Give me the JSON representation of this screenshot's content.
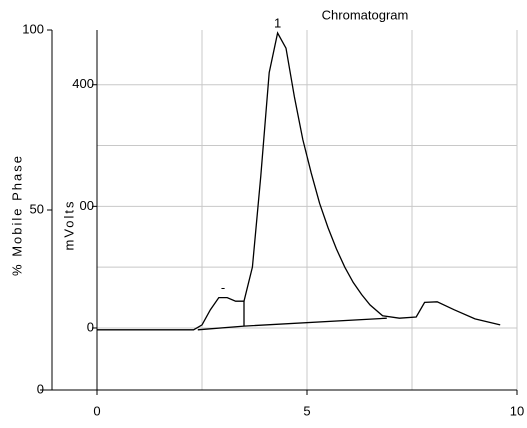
{
  "chart_data": {
    "type": "line",
    "title": "Chromatogram",
    "xlabel": null,
    "ylabel": "mVolts",
    "y2label": "% Mobile Phase",
    "xlim": [
      0,
      10
    ],
    "xticks": [
      0,
      5,
      10
    ],
    "xgrid": [
      2.5,
      5,
      7.5,
      10
    ],
    "ylim": [
      -102,
      490
    ],
    "yticks": [
      0,
      {
        "value": 200,
        "label": "00"
      },
      400
    ],
    "ygrid": [
      0,
      100,
      200,
      300,
      400
    ],
    "y2lim": [
      0,
      100
    ],
    "y2ticks": [
      0,
      50,
      100
    ],
    "grid": true,
    "series": [
      {
        "color": "#000000",
        "x": [
          0,
          2.3,
          2.5,
          2.7,
          2.9,
          3.1,
          3.3,
          3.5,
          3.7,
          3.9,
          4.1,
          4.3,
          4.5,
          4.7,
          4.9,
          5.1,
          5.3,
          5.5,
          5.7,
          5.9,
          6.1,
          6.3,
          6.5,
          6.8,
          7.2,
          7.6,
          7.8,
          8.1,
          8.5,
          9,
          9.6
        ],
        "values": [
          -3,
          -3,
          5,
          30,
          50,
          50,
          44,
          44,
          100,
          250,
          420,
          485,
          460,
          380,
          310,
          255,
          205,
          165,
          130,
          100,
          75,
          55,
          38,
          20,
          16,
          18,
          42,
          43,
          30,
          15,
          5
        ]
      },
      {
        "color": "#000000",
        "x": [
          2.4,
          3.5,
          6.9
        ],
        "values": [
          -3,
          3,
          16
        ]
      },
      {
        "color": "#000000",
        "x": [
          3.5,
          3.5
        ],
        "values": [
          3,
          44
        ]
      }
    ],
    "annotations": [
      {
        "text": "1",
        "x": 4.3,
        "y": 500
      },
      {
        "text": "-",
        "x": 3.0,
        "y": 65
      }
    ]
  }
}
